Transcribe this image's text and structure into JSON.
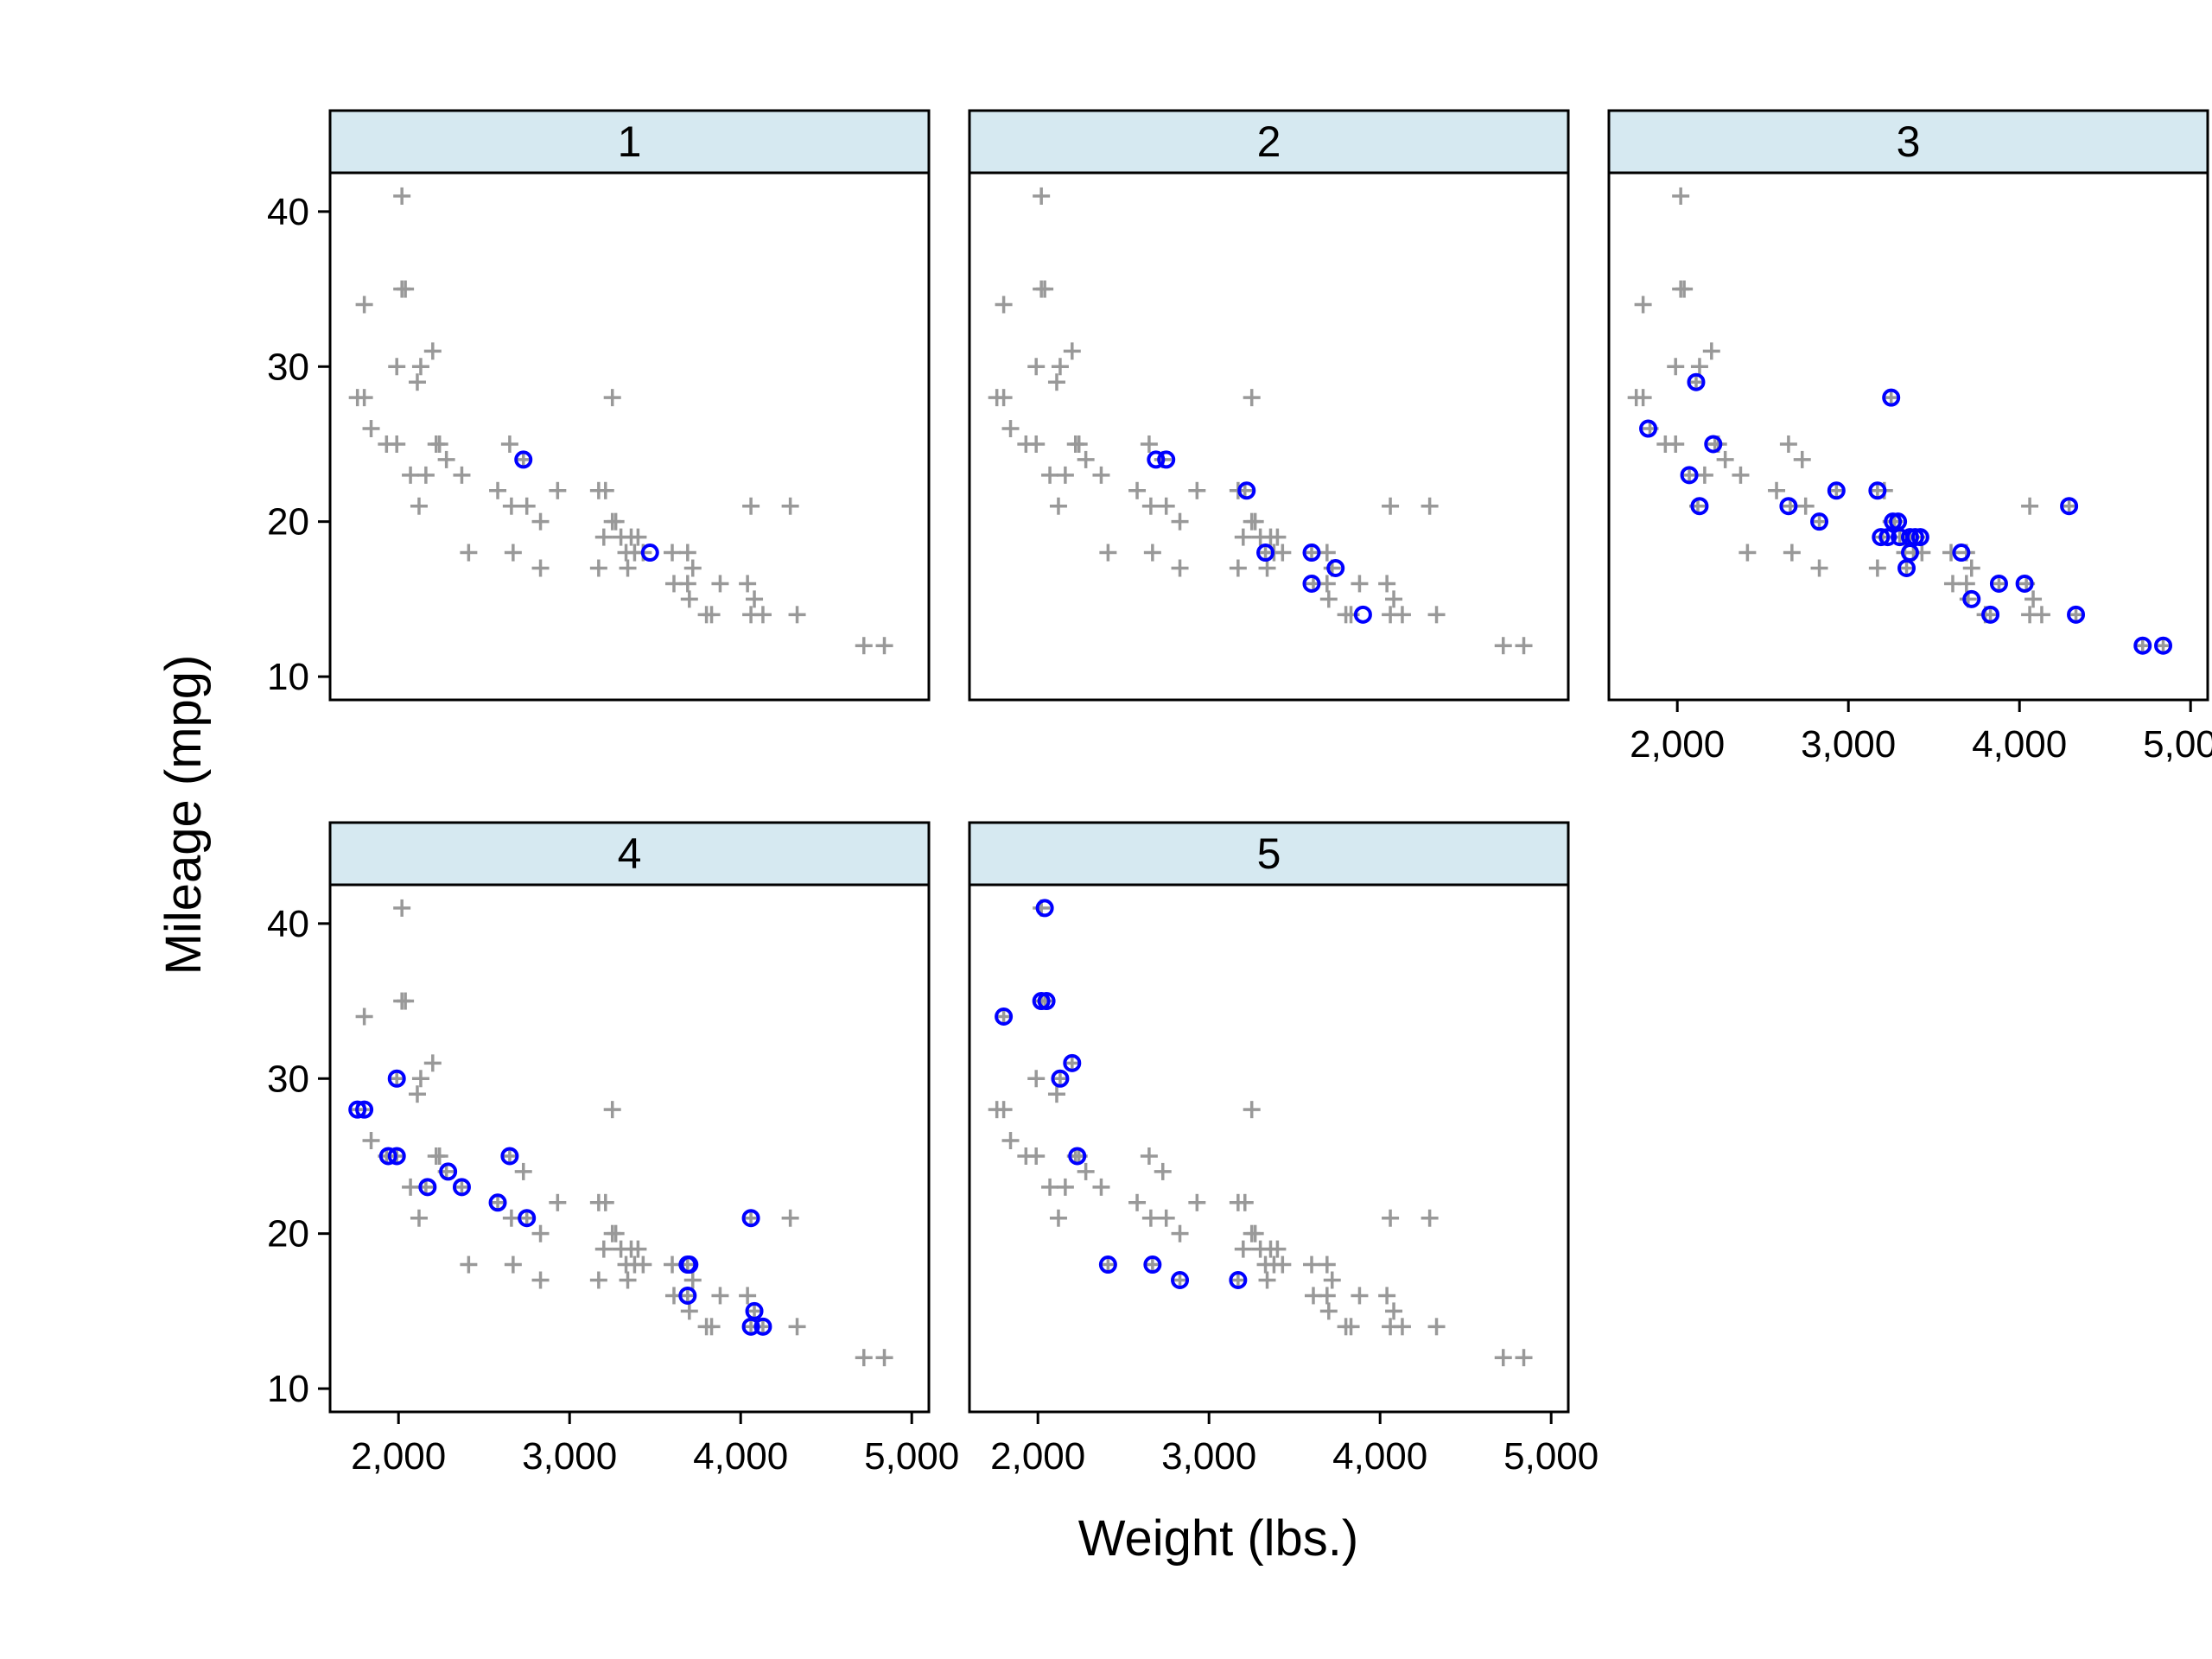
{
  "chart_data": {
    "type": "scatter",
    "xlabel": "Weight (lbs.)",
    "ylabel": "Mileage (mpg)",
    "xlim": [
      1600,
      5100
    ],
    "ylim": [
      8.5,
      42.5
    ],
    "x_ticks": [
      2000,
      3000,
      4000,
      5000
    ],
    "x_tick_labels": [
      "2,000",
      "3,000",
      "4,000",
      "5,000"
    ],
    "y_ticks": [
      10,
      20,
      30,
      40
    ],
    "y_tick_labels": [
      "10",
      "20",
      "30",
      "40"
    ],
    "grid": false,
    "legend": "none",
    "colors": {
      "background_points": "#999999",
      "highlight_points": "#0000ff",
      "strip": "#d6e9f1"
    },
    "background_points": [
      {
        "x": 2020,
        "y": 41
      },
      {
        "x": 1800,
        "y": 34
      },
      {
        "x": 2020,
        "y": 35
      },
      {
        "x": 2040,
        "y": 35
      },
      {
        "x": 1760,
        "y": 28
      },
      {
        "x": 1800,
        "y": 28
      },
      {
        "x": 1990,
        "y": 30
      },
      {
        "x": 2130,
        "y": 30
      },
      {
        "x": 2200,
        "y": 31
      },
      {
        "x": 2110,
        "y": 29
      },
      {
        "x": 1840,
        "y": 26
      },
      {
        "x": 1930,
        "y": 25
      },
      {
        "x": 1990,
        "y": 25
      },
      {
        "x": 2220,
        "y": 25
      },
      {
        "x": 2240,
        "y": 25
      },
      {
        "x": 2070,
        "y": 23
      },
      {
        "x": 2160,
        "y": 23
      },
      {
        "x": 2280,
        "y": 24
      },
      {
        "x": 2370,
        "y": 23
      },
      {
        "x": 2120,
        "y": 21
      },
      {
        "x": 2580,
        "y": 22
      },
      {
        "x": 2650,
        "y": 25
      },
      {
        "x": 2730,
        "y": 24
      },
      {
        "x": 2660,
        "y": 21
      },
      {
        "x": 2750,
        "y": 21
      },
      {
        "x": 2830,
        "y": 20
      },
      {
        "x": 2930,
        "y": 22
      },
      {
        "x": 2670,
        "y": 18
      },
      {
        "x": 2830,
        "y": 17
      },
      {
        "x": 2410,
        "y": 18
      },
      {
        "x": 3170,
        "y": 22
      },
      {
        "x": 3210,
        "y": 22
      },
      {
        "x": 3250,
        "y": 28
      },
      {
        "x": 3250,
        "y": 20
      },
      {
        "x": 3270,
        "y": 20
      },
      {
        "x": 3200,
        "y": 19
      },
      {
        "x": 3300,
        "y": 19
      },
      {
        "x": 3360,
        "y": 19
      },
      {
        "x": 3400,
        "y": 19
      },
      {
        "x": 3170,
        "y": 17
      },
      {
        "x": 3330,
        "y": 18
      },
      {
        "x": 3380,
        "y": 18
      },
      {
        "x": 3340,
        "y": 17
      },
      {
        "x": 3430,
        "y": 18
      },
      {
        "x": 3600,
        "y": 18
      },
      {
        "x": 3690,
        "y": 18
      },
      {
        "x": 3720,
        "y": 17
      },
      {
        "x": 3610,
        "y": 16
      },
      {
        "x": 3690,
        "y": 16
      },
      {
        "x": 3700,
        "y": 15
      },
      {
        "x": 3830,
        "y": 14
      },
      {
        "x": 3880,
        "y": 16
      },
      {
        "x": 3800,
        "y": 14
      },
      {
        "x": 4040,
        "y": 16
      },
      {
        "x": 4060,
        "y": 21
      },
      {
        "x": 4290,
        "y": 21
      },
      {
        "x": 4080,
        "y": 15
      },
      {
        "x": 4060,
        "y": 14
      },
      {
        "x": 4130,
        "y": 14
      },
      {
        "x": 4330,
        "y": 14
      },
      {
        "x": 4720,
        "y": 12
      },
      {
        "x": 4840,
        "y": 12
      }
    ],
    "facets": [
      {
        "label": "1",
        "highlight": [
          {
            "x": 2730,
            "y": 24
          },
          {
            "x": 3470,
            "y": 18
          }
        ]
      },
      {
        "label": "2",
        "highlight": [
          {
            "x": 2690,
            "y": 24
          },
          {
            "x": 2750,
            "y": 24
          },
          {
            "x": 3220,
            "y": 22
          },
          {
            "x": 3330,
            "y": 18
          },
          {
            "x": 3600,
            "y": 18
          },
          {
            "x": 3600,
            "y": 16
          },
          {
            "x": 3740,
            "y": 17
          },
          {
            "x": 3900,
            "y": 14
          }
        ]
      },
      {
        "label": "3",
        "highlight": [
          {
            "x": 2110,
            "y": 29
          },
          {
            "x": 3250,
            "y": 28
          },
          {
            "x": 1830,
            "y": 26
          },
          {
            "x": 2210,
            "y": 25
          },
          {
            "x": 2070,
            "y": 23
          },
          {
            "x": 2130,
            "y": 21
          },
          {
            "x": 2650,
            "y": 21
          },
          {
            "x": 2830,
            "y": 20
          },
          {
            "x": 2930,
            "y": 22
          },
          {
            "x": 3170,
            "y": 22
          },
          {
            "x": 3260,
            "y": 20
          },
          {
            "x": 3290,
            "y": 20
          },
          {
            "x": 3190,
            "y": 19
          },
          {
            "x": 3230,
            "y": 19
          },
          {
            "x": 3300,
            "y": 19
          },
          {
            "x": 3360,
            "y": 19
          },
          {
            "x": 3390,
            "y": 19
          },
          {
            "x": 3420,
            "y": 19
          },
          {
            "x": 3360,
            "y": 18
          },
          {
            "x": 3340,
            "y": 17
          },
          {
            "x": 3660,
            "y": 18
          },
          {
            "x": 3880,
            "y": 16
          },
          {
            "x": 4030,
            "y": 16
          },
          {
            "x": 3720,
            "y": 15
          },
          {
            "x": 3830,
            "y": 14
          },
          {
            "x": 4330,
            "y": 14
          },
          {
            "x": 4290,
            "y": 21
          },
          {
            "x": 4720,
            "y": 12
          },
          {
            "x": 4840,
            "y": 12
          }
        ]
      },
      {
        "label": "4",
        "highlight": [
          {
            "x": 1760,
            "y": 28
          },
          {
            "x": 1800,
            "y": 28
          },
          {
            "x": 1990,
            "y": 30
          },
          {
            "x": 1940,
            "y": 25
          },
          {
            "x": 1990,
            "y": 25
          },
          {
            "x": 2170,
            "y": 23
          },
          {
            "x": 2290,
            "y": 24
          },
          {
            "x": 2370,
            "y": 23
          },
          {
            "x": 2580,
            "y": 22
          },
          {
            "x": 2650,
            "y": 25
          },
          {
            "x": 2750,
            "y": 21
          },
          {
            "x": 3690,
            "y": 18
          },
          {
            "x": 3700,
            "y": 18
          },
          {
            "x": 3690,
            "y": 16
          },
          {
            "x": 4060,
            "y": 21
          },
          {
            "x": 4080,
            "y": 15
          },
          {
            "x": 4060,
            "y": 14
          },
          {
            "x": 4130,
            "y": 14
          }
        ]
      },
      {
        "label": "5",
        "highlight": [
          {
            "x": 2040,
            "y": 41
          },
          {
            "x": 1800,
            "y": 34
          },
          {
            "x": 2020,
            "y": 35
          },
          {
            "x": 2050,
            "y": 35
          },
          {
            "x": 2200,
            "y": 31
          },
          {
            "x": 2130,
            "y": 30
          },
          {
            "x": 2230,
            "y": 25
          },
          {
            "x": 2410,
            "y": 18
          },
          {
            "x": 2670,
            "y": 18
          },
          {
            "x": 2830,
            "y": 17
          },
          {
            "x": 3170,
            "y": 17
          }
        ]
      }
    ]
  }
}
